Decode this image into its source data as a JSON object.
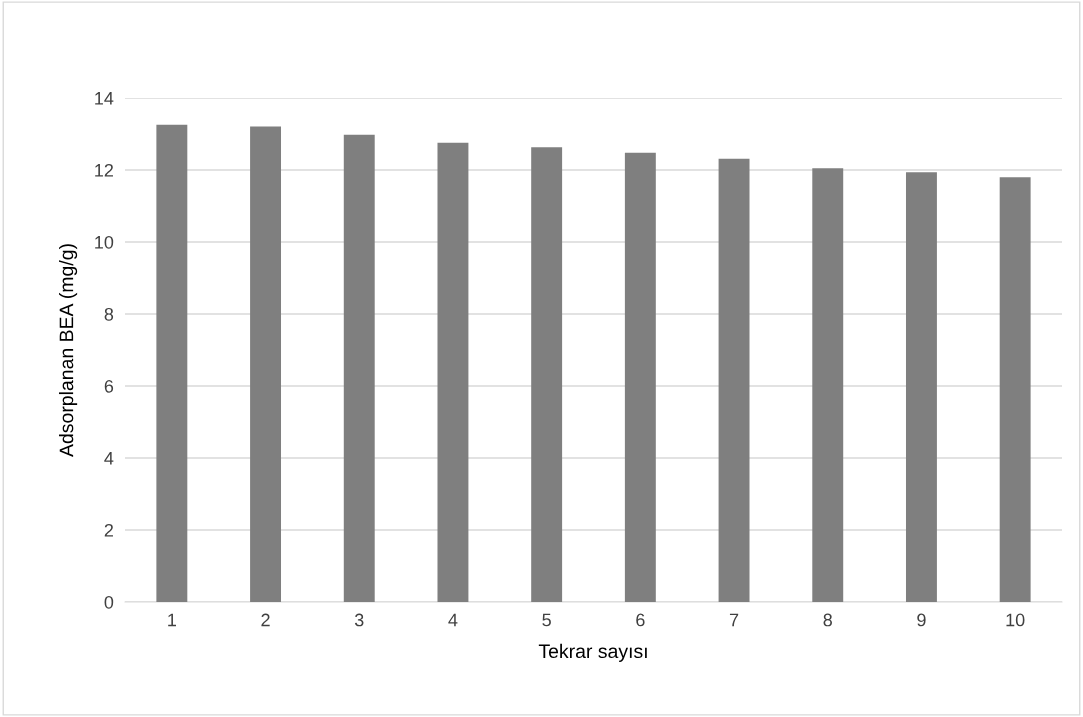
{
  "chart_data": {
    "type": "bar",
    "xlabel": "Tekrar sayısı",
    "ylabel": "Adsorplanan BEA (mg/g)",
    "categories": [
      "1",
      "2",
      "3",
      "4",
      "5",
      "6",
      "7",
      "8",
      "9",
      "10"
    ],
    "values": [
      13.26,
      13.21,
      12.98,
      12.76,
      12.63,
      12.48,
      12.31,
      12.05,
      11.94,
      11.8
    ],
    "color": "#7f7f7f",
    "ylim": [
      0,
      14
    ],
    "yticks": [
      0,
      2,
      4,
      6,
      8,
      10,
      12,
      14
    ],
    "grid": "y"
  }
}
